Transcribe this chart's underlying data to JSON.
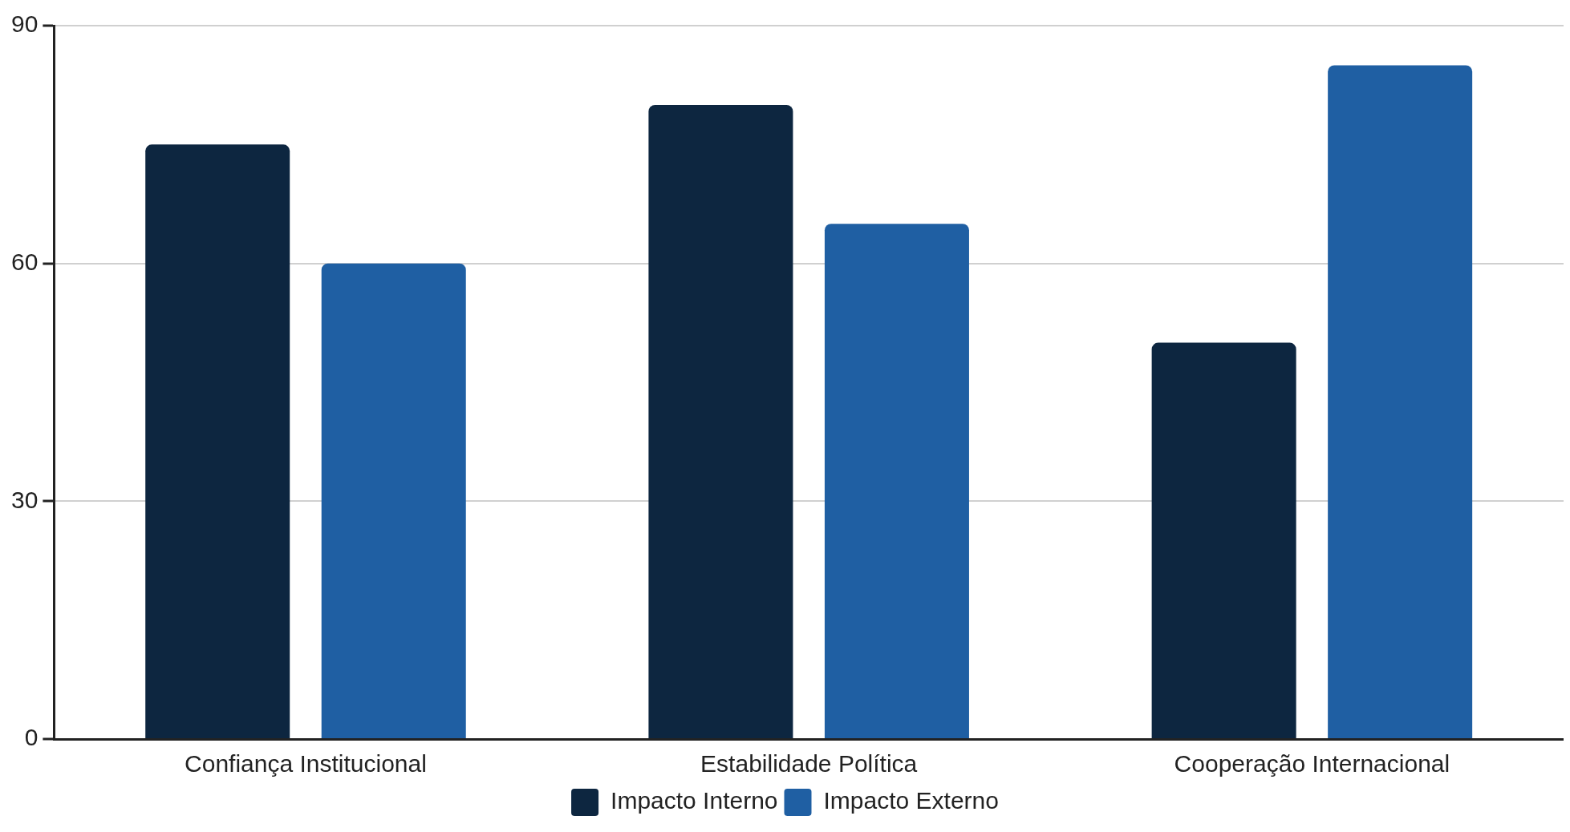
{
  "chart_data": {
    "type": "bar",
    "categories": [
      "Confiança Institucional",
      "Estabilidade Política",
      "Cooperação Internacional"
    ],
    "series": [
      {
        "name": "Impacto Interno",
        "color": "#0d2640",
        "values": [
          75,
          80,
          50
        ]
      },
      {
        "name": "Impacto Externo",
        "color": "#1f5fa3",
        "values": [
          60,
          65,
          85
        ]
      }
    ],
    "ylim": [
      0,
      90
    ],
    "yticks": [
      0,
      30,
      60,
      90
    ],
    "grid": "y",
    "legend": "bottom"
  }
}
